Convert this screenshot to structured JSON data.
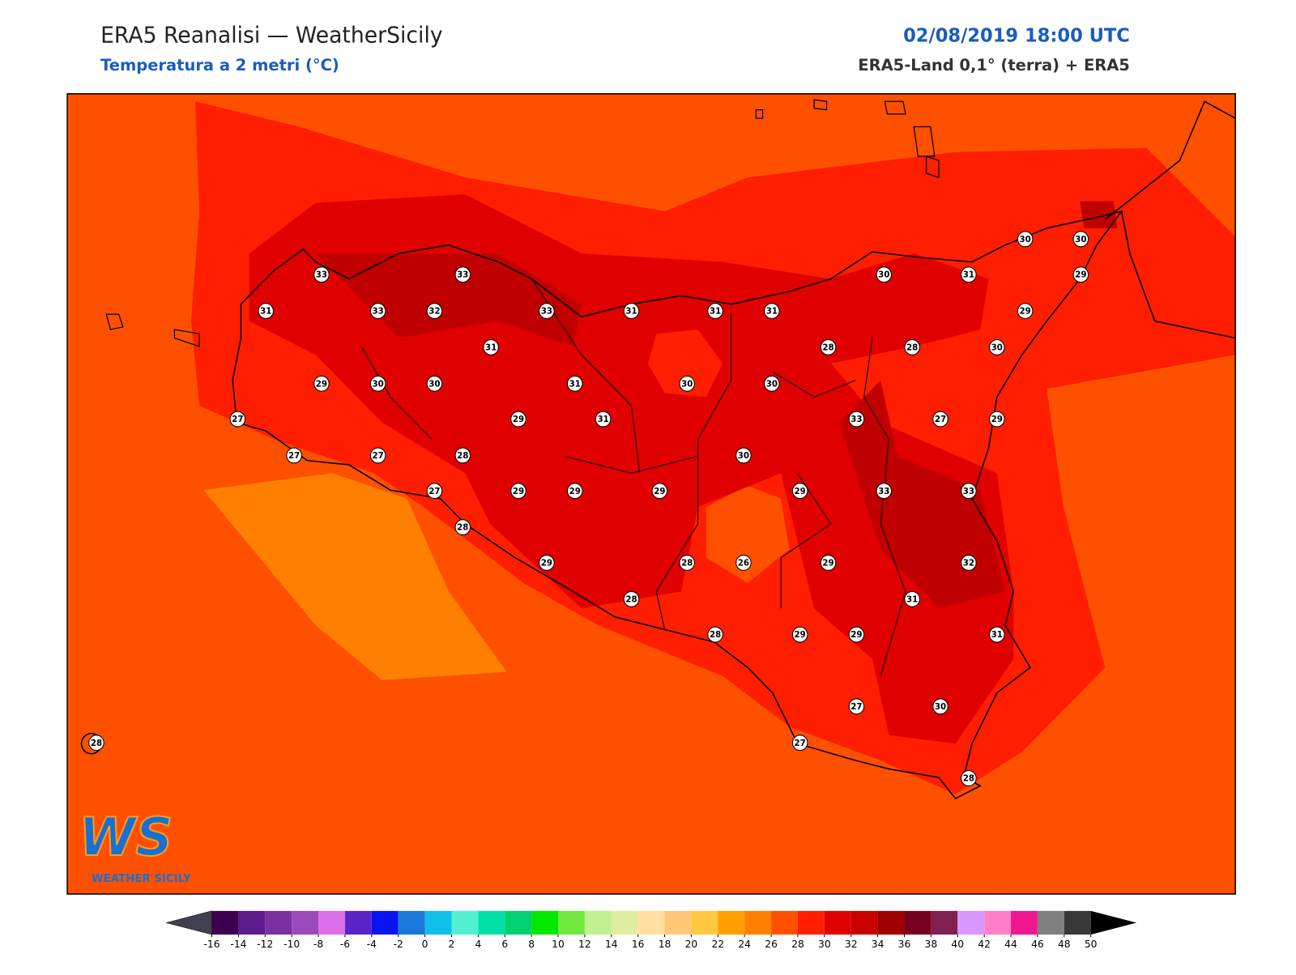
{
  "header": {
    "title": "ERA5 Reanalisi — WeatherSicily",
    "subtitle": "Temperatura a 2 metri (°C)",
    "date": "02/08/2019 18:00 UTC",
    "source": "ERA5-Land 0,1° (terra) + ERA5"
  },
  "map": {
    "station_values": [
      33,
      33,
      31,
      33,
      32,
      33,
      31,
      31,
      31,
      30,
      31,
      30,
      30,
      29,
      29,
      31,
      28,
      28,
      30,
      29,
      30,
      30,
      31,
      30,
      30,
      27,
      29,
      31,
      33,
      27,
      29,
      27,
      27,
      28,
      30,
      27,
      29,
      29,
      29,
      29,
      33,
      33,
      28,
      29,
      28,
      26,
      29,
      32,
      28,
      31,
      28,
      29,
      29,
      31,
      27,
      30,
      28,
      27,
      28
    ]
  },
  "colorbar": {
    "ticks": [
      -16,
      -14,
      -12,
      -10,
      -8,
      -6,
      -4,
      -2,
      0,
      2,
      4,
      6,
      8,
      10,
      12,
      14,
      16,
      18,
      20,
      22,
      24,
      26,
      28,
      30,
      32,
      34,
      36,
      38,
      40,
      42,
      44,
      46,
      48,
      50
    ],
    "colors": [
      "#3c0050",
      "#5c1a8c",
      "#7a30a0",
      "#9a4ab8",
      "#dc6ee8",
      "#5a24c8",
      "#0a14f0",
      "#1a78d8",
      "#10c0e8",
      "#50f0d0",
      "#00e0a8",
      "#00d070",
      "#00e800",
      "#70e840",
      "#c0f090",
      "#e0eca0",
      "#ffe0a0",
      "#ffc878",
      "#ffc840",
      "#ffa000",
      "#ff8000",
      "#ff5000",
      "#ff1e00",
      "#e00000",
      "#c80000",
      "#a00000",
      "#780020",
      "#802050",
      "#d898ff",
      "#ff80c8",
      "#f01890",
      "#808080",
      "#383838"
    ],
    "under_color": "#404050",
    "over_color": "#000000"
  },
  "logo": {
    "mark": "WS",
    "name": "WEATHER SICILY"
  }
}
